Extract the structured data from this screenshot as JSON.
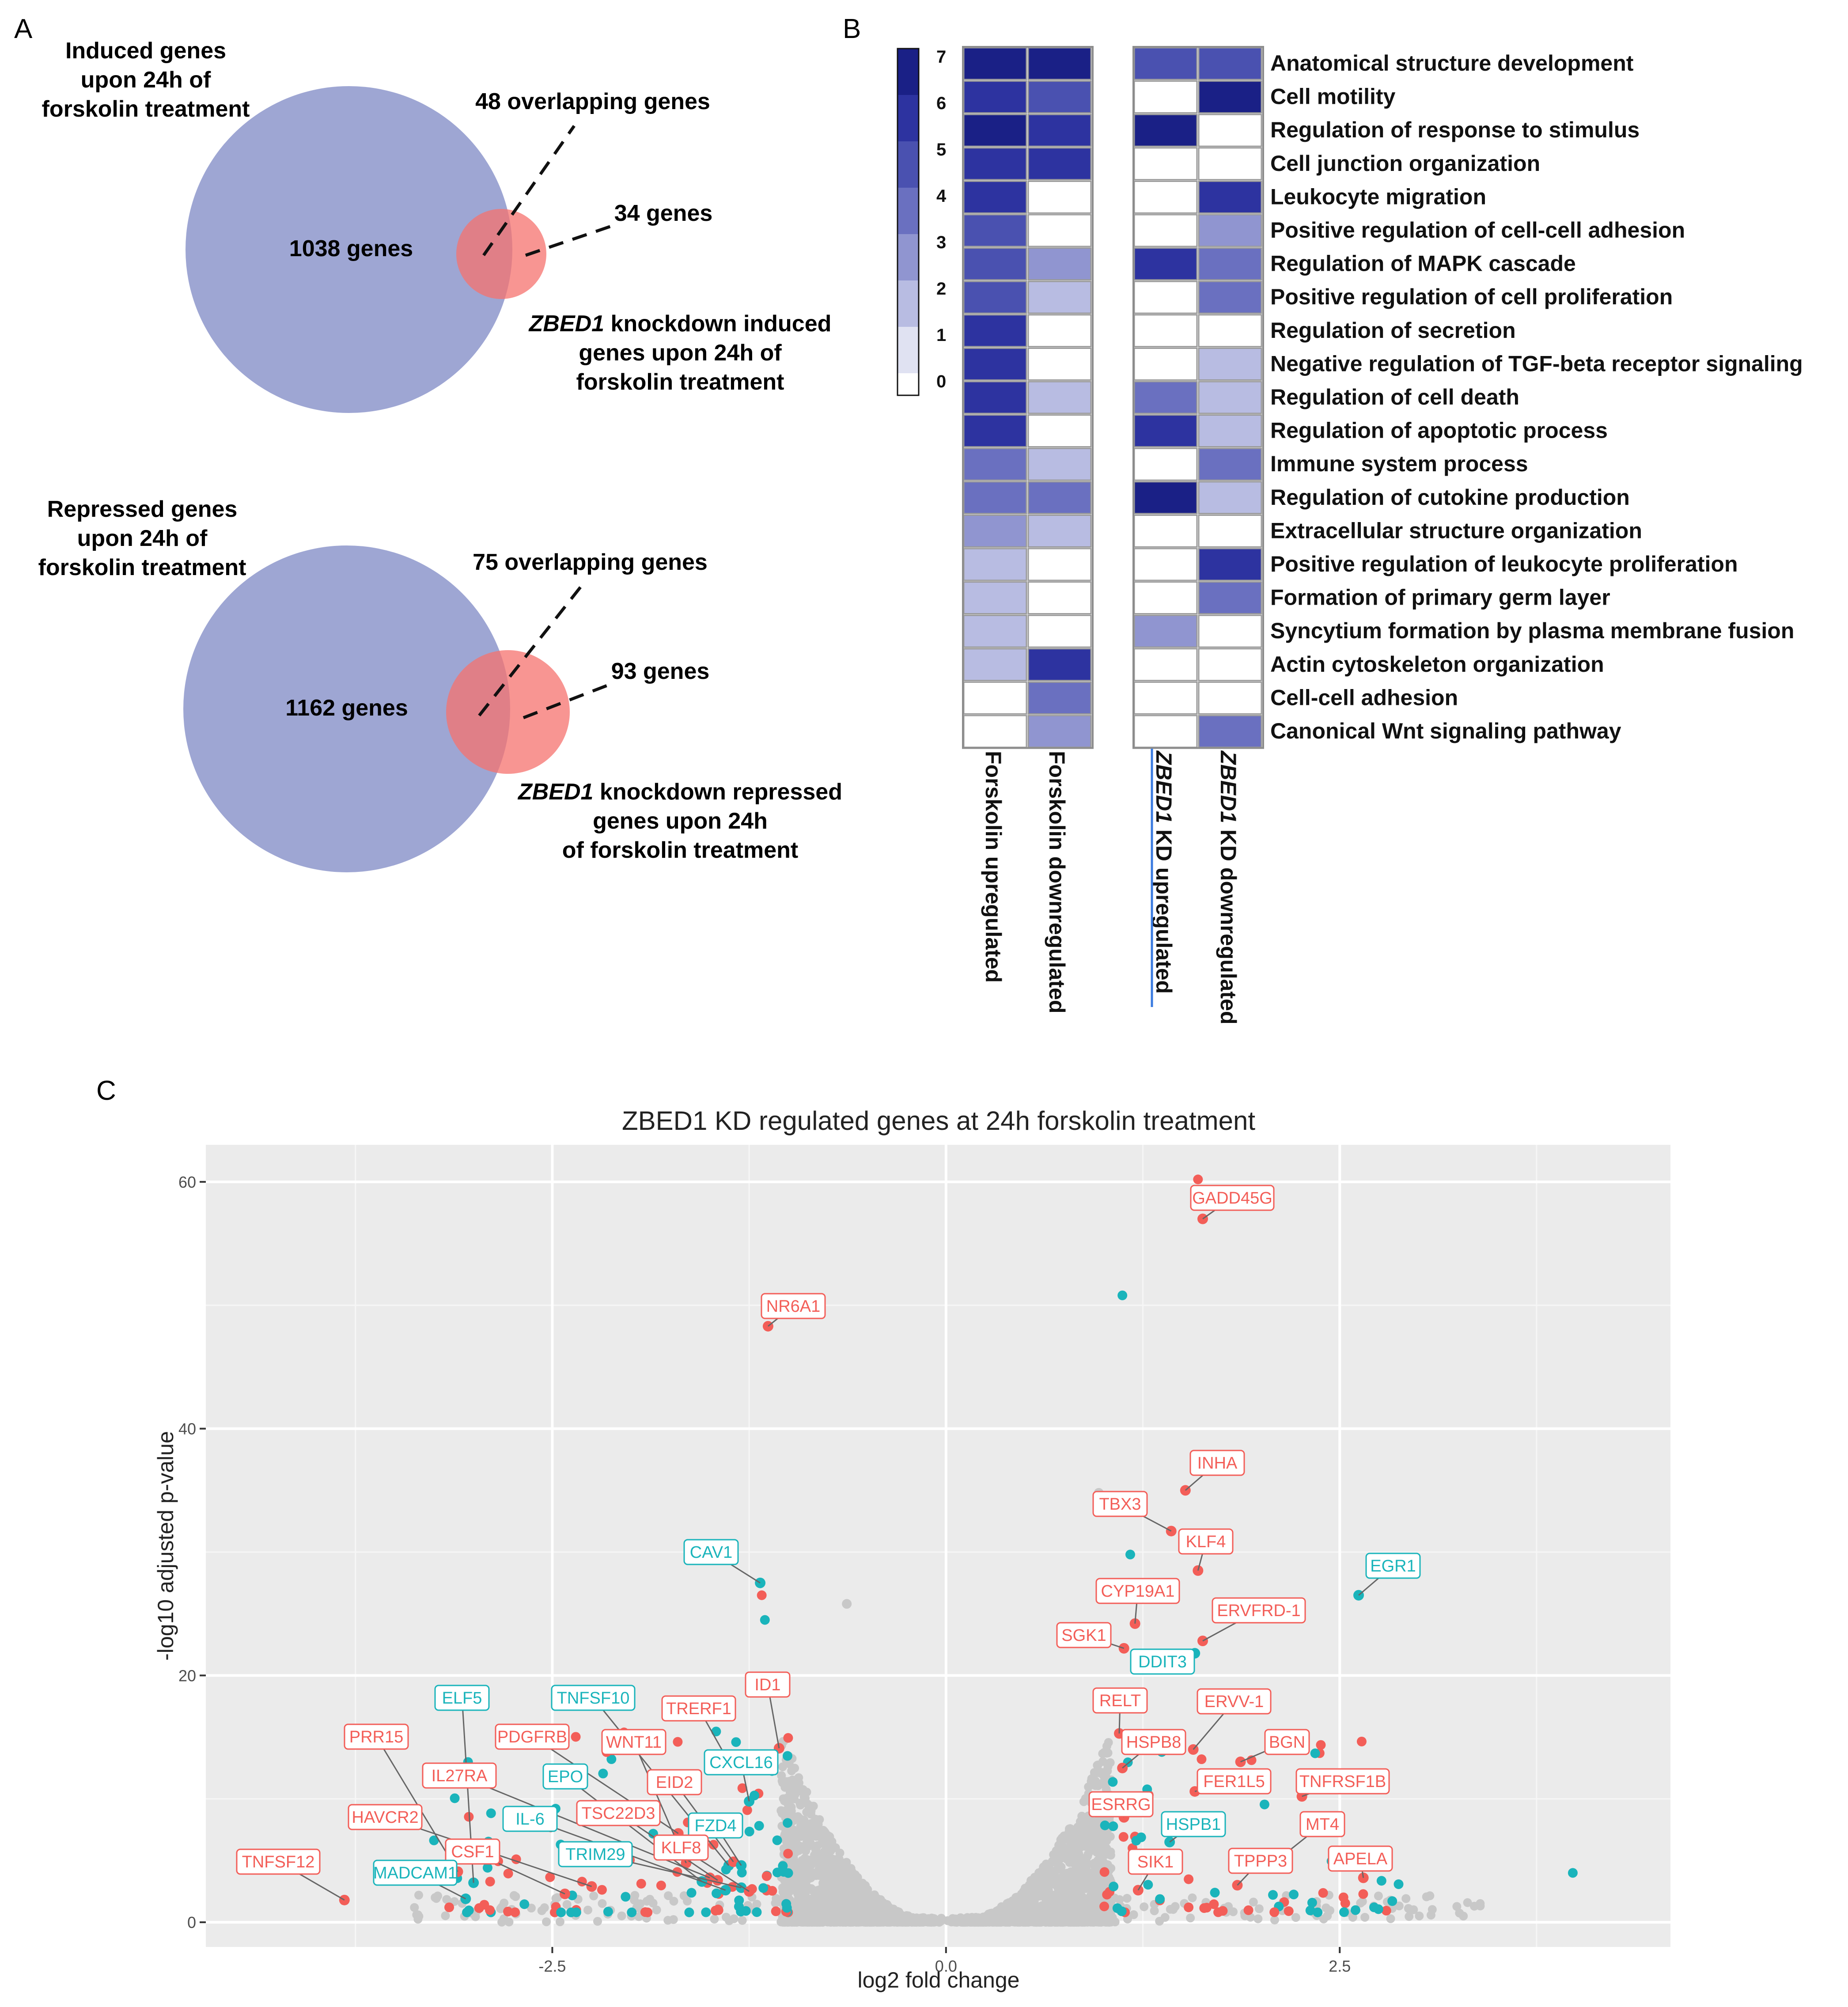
{
  "panelA": {
    "label": "A",
    "top": {
      "big_title": [
        "Induced genes",
        "upon 24h of",
        "forskolin treatment"
      ],
      "big_count": "1038 genes",
      "overlap": "48 overlapping genes",
      "small_count": "34 genes",
      "small_title_italic": "ZBED1",
      "small_title": [
        " knockdown induced",
        "genes upon 24h of",
        "forskolin treatment"
      ]
    },
    "bottom": {
      "big_title": [
        "Repressed genes",
        "upon 24h of",
        "forskolin treatment"
      ],
      "big_count": "1162 genes",
      "overlap": "75 overlapping genes",
      "small_count": "93 genes",
      "small_title_italic": "ZBED1",
      "small_title": [
        " knockdown repressed",
        "genes upon 24h",
        "of forskolin treatment"
      ]
    },
    "colors": {
      "big": "#9EA6D3",
      "small": "#F5716D"
    }
  },
  "panelB": {
    "label": "B",
    "legend_ticks": [
      "7",
      "6",
      "5",
      "4",
      "3",
      "2",
      "1",
      "0"
    ],
    "terms": [
      "Anatomical structure development",
      "Cell motility",
      "Regulation of response to stimulus",
      "Cell junction organization",
      "Leukocyte migration",
      "Positive regulation of cell-cell adhesion",
      "Regulation of MAPK cascade",
      "Positive regulation of cell proliferation",
      "Regulation of secretion",
      "Negative regulation of TGF-beta receptor signaling",
      "Regulation of cell death",
      "Regulation of apoptotic process",
      "Immune system process",
      "Regulation of cutokine production",
      "Extracellular structure organization",
      "Positive regulation of leukocyte proliferation",
      "Formation of primary germ layer",
      "Syncytium formation by plasma membrane fusion",
      "Actin cytoskeleton organization",
      "Cell-cell adhesion",
      "Canonical Wnt signaling pathway"
    ],
    "columns": [
      {
        "label": "Forskolin upregulated",
        "italic": ""
      },
      {
        "label": "Forskolin downregulated",
        "italic": ""
      },
      {
        "label": " KD upregulated",
        "italic": "ZBED1"
      },
      {
        "label": " KD downregulated",
        "italic": "ZBED1"
      }
    ],
    "values": [
      [
        7,
        7,
        5,
        5
      ],
      [
        6,
        5,
        0,
        7
      ],
      [
        7,
        6,
        7,
        0
      ],
      [
        6,
        6,
        0,
        0
      ],
      [
        6,
        0,
        0,
        6
      ],
      [
        5,
        0,
        0,
        3
      ],
      [
        5,
        3,
        6,
        4
      ],
      [
        5,
        2,
        0,
        4
      ],
      [
        6,
        0,
        0,
        0
      ],
      [
        6,
        0,
        0,
        2
      ],
      [
        6,
        2,
        4,
        2
      ],
      [
        6,
        0,
        6,
        2
      ],
      [
        4,
        2,
        0,
        4
      ],
      [
        4,
        4,
        7,
        2
      ],
      [
        3,
        2,
        0,
        0
      ],
      [
        2,
        0,
        0,
        6
      ],
      [
        2,
        0,
        0,
        4
      ],
      [
        2,
        0,
        3,
        0
      ],
      [
        2,
        6,
        0,
        0
      ],
      [
        0,
        4,
        0,
        0
      ],
      [
        0,
        3,
        0,
        4
      ]
    ],
    "color_scale": [
      "#FFFFFF",
      "#E0E2F2",
      "#B8BCE2",
      "#9095D0",
      "#6A70C0",
      "#4A51B0",
      "#2D33A0",
      "#1A2086"
    ]
  },
  "panelC": {
    "label": "C",
    "chart_data": {
      "type": "scatter",
      "title": "ZBED1 KD regulated genes at 24h forskolin treatment",
      "xlabel": "log2 fold change",
      "ylabel": "-log10 adjusted p-value",
      "xlim": [
        -4.7,
        4.6
      ],
      "ylim": [
        -2,
        63
      ],
      "xticks": [
        -2.5,
        0.0,
        2.5
      ],
      "xtick_labels": [
        "-2.5",
        "0.0",
        "2.5"
      ],
      "yticks": [
        0,
        20,
        40,
        60
      ],
      "ytick_labels": [
        "0",
        "20",
        "40",
        "60"
      ],
      "series_colors": {
        "up": "#F35E58",
        "down": "#1AB4BB",
        "ns": "#C8C8C8"
      },
      "labeled_points": [
        {
          "gene": "GADD45G",
          "x": 1.63,
          "y": 57.0,
          "group": "up"
        },
        {
          "gene": "NR6A1",
          "x": -1.13,
          "y": 48.3,
          "group": "up"
        },
        {
          "gene": "INHA",
          "x": 1.52,
          "y": 35.0,
          "group": "up"
        },
        {
          "gene": "TBX3",
          "x": 1.43,
          "y": 31.7,
          "group": "up"
        },
        {
          "gene": "KLF4",
          "x": 1.6,
          "y": 28.5,
          "group": "up"
        },
        {
          "gene": "EGR1",
          "x": 2.62,
          "y": 26.5,
          "group": "down"
        },
        {
          "gene": "CAV1",
          "x": -1.18,
          "y": 27.5,
          "group": "down"
        },
        {
          "gene": "CYP19A1",
          "x": 1.2,
          "y": 24.2,
          "group": "up"
        },
        {
          "gene": "ERVFRD-1",
          "x": 1.63,
          "y": 22.8,
          "group": "up"
        },
        {
          "gene": "SGK1",
          "x": 1.13,
          "y": 22.2,
          "group": "up"
        },
        {
          "gene": "DDIT3",
          "x": 1.58,
          "y": 21.8,
          "group": "down"
        },
        {
          "gene": "ID1",
          "x": -1.06,
          "y": 14.1,
          "group": "up"
        },
        {
          "gene": "TRERF1",
          "x": -1.38,
          "y": 13.0,
          "group": "up"
        },
        {
          "gene": "RELT",
          "x": 1.1,
          "y": 15.3,
          "group": "up"
        },
        {
          "gene": "ERVV-1",
          "x": 1.57,
          "y": 14.0,
          "group": "up"
        },
        {
          "gene": "HSPB8",
          "x": 1.12,
          "y": 12.5,
          "group": "up"
        },
        {
          "gene": "BGN",
          "x": 1.87,
          "y": 13.0,
          "group": "up"
        },
        {
          "gene": "CXCL16",
          "x": -1.25,
          "y": 9.8,
          "group": "down"
        },
        {
          "gene": "FER1L5",
          "x": 1.58,
          "y": 10.6,
          "group": "up"
        },
        {
          "gene": "TNFRSF1B",
          "x": 2.26,
          "y": 10.2,
          "group": "up"
        },
        {
          "gene": "ESRRG",
          "x": 1.13,
          "y": 8.5,
          "group": "up"
        },
        {
          "gene": "HSPB1",
          "x": 1.42,
          "y": 6.5,
          "group": "down"
        },
        {
          "gene": "MT4",
          "x": 2.1,
          "y": 5.0,
          "group": "up"
        },
        {
          "gene": "APELA",
          "x": 2.65,
          "y": 3.6,
          "group": "up"
        },
        {
          "gene": "TPPP3",
          "x": 1.85,
          "y": 3.0,
          "group": "up"
        },
        {
          "gene": "SIK1",
          "x": 1.22,
          "y": 2.6,
          "group": "up"
        },
        {
          "gene": "ELF5",
          "x": -3.0,
          "y": 3.2,
          "group": "down"
        },
        {
          "gene": "TNFSF10",
          "x": -1.38,
          "y": 4.6,
          "group": "down"
        },
        {
          "gene": "PRR15",
          "x": -3.1,
          "y": 4.1,
          "group": "up"
        },
        {
          "gene": "PDGFRB",
          "x": -1.7,
          "y": 7.2,
          "group": "up"
        },
        {
          "gene": "WNT11",
          "x": -1.65,
          "y": 4.8,
          "group": "up"
        },
        {
          "gene": "IL27RA",
          "x": -1.5,
          "y": 3.6,
          "group": "up"
        },
        {
          "gene": "EPO",
          "x": -1.55,
          "y": 3.3,
          "group": "down"
        },
        {
          "gene": "EID2",
          "x": -1.35,
          "y": 4.9,
          "group": "up"
        },
        {
          "gene": "HAVCR2",
          "x": -2.25,
          "y": 2.9,
          "group": "up"
        },
        {
          "gene": "IL-6",
          "x": -1.4,
          "y": 2.6,
          "group": "down"
        },
        {
          "gene": "TSC22D3",
          "x": -1.45,
          "y": 3.4,
          "group": "up"
        },
        {
          "gene": "FZD4",
          "x": -1.3,
          "y": 4.6,
          "group": "down"
        },
        {
          "gene": "CSF1",
          "x": -2.42,
          "y": 2.3,
          "group": "up"
        },
        {
          "gene": "TRIM29",
          "x": -1.3,
          "y": 2.8,
          "group": "down"
        },
        {
          "gene": "KLF8",
          "x": -1.25,
          "y": 2.5,
          "group": "up"
        },
        {
          "gene": "TNFSF12",
          "x": -3.82,
          "y": 1.8,
          "group": "up"
        },
        {
          "gene": "MADCAM1",
          "x": -3.05,
          "y": 1.9,
          "group": "down"
        }
      ],
      "extra_points": [
        {
          "x": 1.6,
          "y": 60.2,
          "group": "up"
        },
        {
          "x": 1.12,
          "y": 50.8,
          "group": "down"
        },
        {
          "x": -1.15,
          "y": 24.5,
          "group": "down"
        },
        {
          "x": -1.17,
          "y": 26.5,
          "group": "up"
        },
        {
          "x": 1.17,
          "y": 29.8,
          "group": "down"
        },
        {
          "x": 3.98,
          "y": 4.0,
          "group": "down"
        },
        {
          "x": -0.63,
          "y": 25.8,
          "group": "ns"
        },
        {
          "x": 0.97,
          "y": 34.8,
          "group": "ns"
        }
      ]
    }
  }
}
